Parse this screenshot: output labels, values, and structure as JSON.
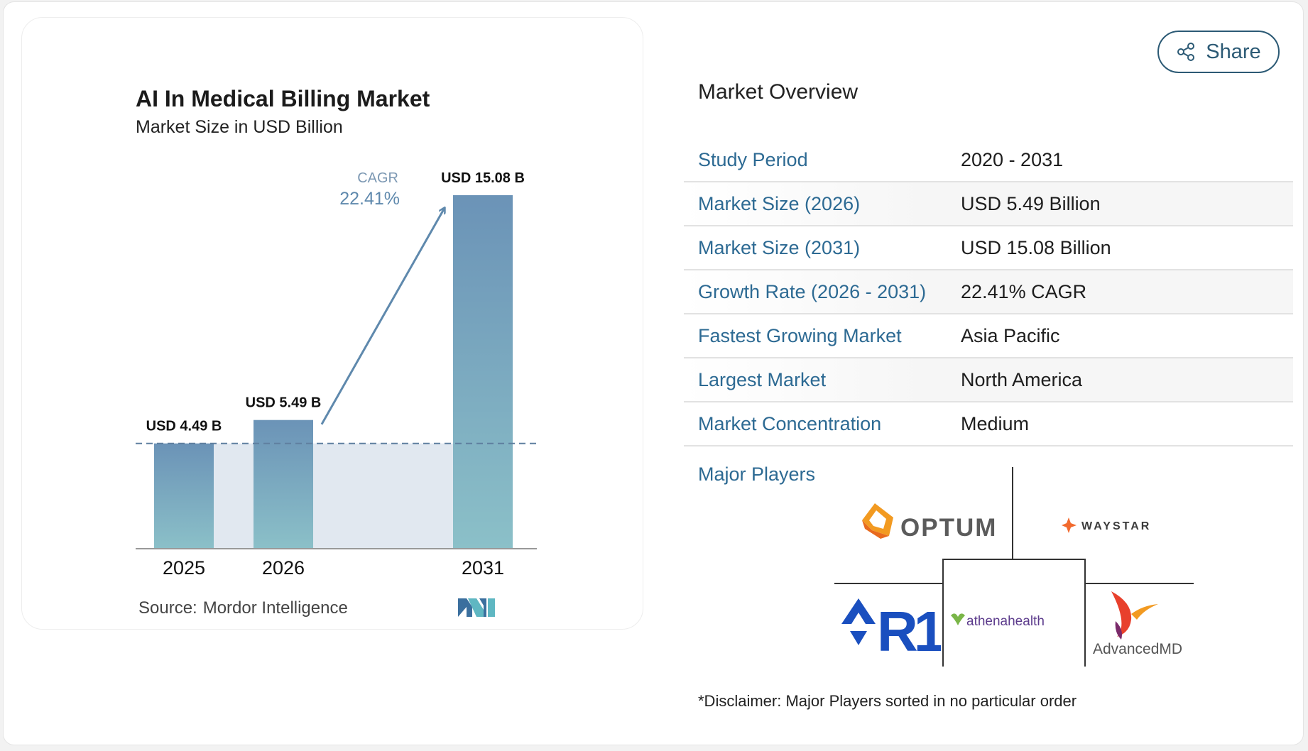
{
  "chart_data": {
    "type": "bar",
    "title": "AI In Medical Billing Market",
    "subtitle": "Market Size in USD Billion",
    "categories": [
      "2025",
      "2026",
      "2031"
    ],
    "values": [
      4.49,
      5.49,
      15.08
    ],
    "data_labels": [
      "USD 4.49 B",
      "USD 5.49 B",
      "USD 15.08 B"
    ],
    "cagr_label": "CAGR",
    "cagr_value": "22.41%",
    "ylim": [
      0,
      15.08
    ],
    "grid": false,
    "colors": {
      "bar_top": "#6b93b7",
      "bar_bottom": "#8bc0c8",
      "shade": "#e1e8f0",
      "arrow": "#5f89ad",
      "axis": "#999999"
    }
  },
  "source": {
    "label": "Source:",
    "value": "Mordor Intelligence"
  },
  "logo_icon": "mordor-intelligence-logo",
  "share": {
    "label": "Share",
    "icon": "share-icon"
  },
  "overview": {
    "title": "Market Overview",
    "rows": [
      {
        "label": "Study Period",
        "value": "2020 - 2031"
      },
      {
        "label": "Market Size (2026)",
        "value": "USD 5.49 Billion"
      },
      {
        "label": "Market Size (2031)",
        "value": "USD 15.08 Billion"
      },
      {
        "label": "Growth Rate (2026 - 2031)",
        "value": "22.41% CAGR"
      },
      {
        "label": "Fastest Growing Market",
        "value": "Asia Pacific"
      },
      {
        "label": "Largest Market",
        "value": "North America"
      },
      {
        "label": "Market Concentration",
        "value": "Medium"
      }
    ]
  },
  "players": {
    "label": "Major Players",
    "logos": [
      "OPTUM",
      "WAYSTAR",
      "R1",
      "athenahealth",
      "AdvancedMD"
    ],
    "disclaimer": "*Disclaimer: Major Players sorted in no particular order"
  }
}
